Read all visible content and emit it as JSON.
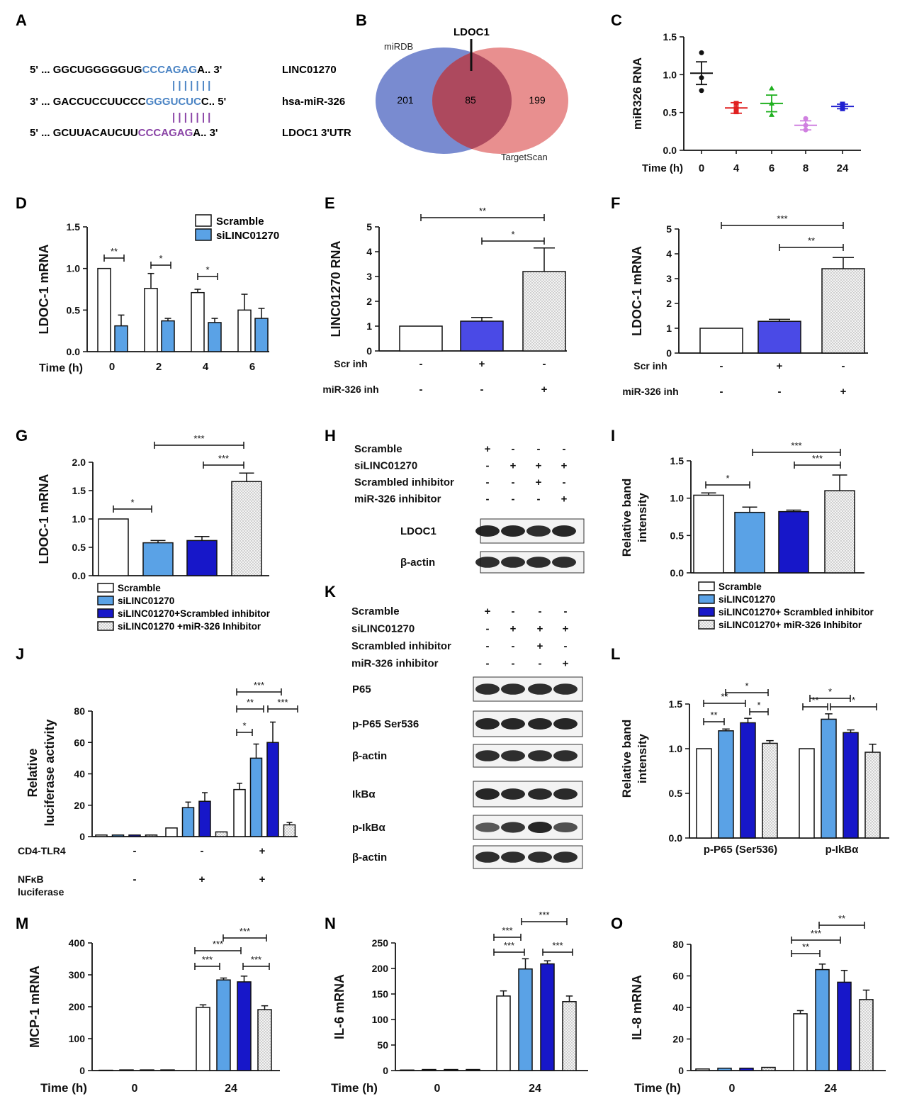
{
  "panel_letters": [
    "A",
    "B",
    "C",
    "D",
    "E",
    "F",
    "G",
    "H",
    "I",
    "J",
    "K",
    "L",
    "M",
    "N",
    "O"
  ],
  "panel_a": {
    "rows": [
      {
        "prefix": "5' ... ",
        "plain": "GGCUGGGGGUG",
        "colored": "CCCAGAG",
        "suffix": "A.. 3'",
        "label": "LINC01270",
        "color": "#4b84c4"
      },
      {
        "prefix": "3' ... ",
        "plain": "GACCUCCUUCCC",
        "colored": "GGGUCUC",
        "suffix": "C.. 5'",
        "label": "hsa-miR-326",
        "color": "#4b84c4"
      },
      {
        "prefix": "5' ... ",
        "plain": "GCUUACAUCUU",
        "colored": "CCCAGAG",
        "suffix": "A.. 3'",
        "label": "LDOC1 3'UTR",
        "color": "#8a44a6"
      }
    ],
    "pair_top": "| | | | | | |",
    "pair_bottom": "| | | | | | |"
  },
  "panel_b": {
    "left_label": "miRDB",
    "right_label": "TargetScan",
    "marker_label": "LDOC1",
    "left_only": "201",
    "overlap": "85",
    "right_only": "199",
    "colors": {
      "left": "#6a7ecb",
      "right": "#e47b7b",
      "overlap": "#a9445a"
    }
  },
  "legend_four": [
    "Scramble",
    "siLINC01270",
    "siLINC01270+Scrambled inhibitor",
    "siLINC01270 +miR-326 Inhibitor"
  ],
  "legend_four_i": [
    "Scramble",
    "siLINC01270",
    "siLINC01270+ Scrambled inhibitor",
    "siLINC01270+ miR-326 Inhibitor"
  ],
  "legend_two": [
    "Scramble",
    "siLINC01270"
  ],
  "colors": {
    "white": "#ffffff",
    "light_blue": "#5aa2e6",
    "dark_blue": "#1717c9",
    "medium_blue": "#4a4ae6",
    "dotted": "#ececec"
  },
  "blot_h": {
    "rows": [
      {
        "label": "Scramble",
        "marks": [
          "+",
          "-",
          "-",
          "-"
        ]
      },
      {
        "label": "siLINC01270",
        "marks": [
          "-",
          "+",
          "+",
          "+"
        ]
      },
      {
        "label": "Scrambled inhibitor",
        "marks": [
          "-",
          "-",
          "+",
          "-"
        ]
      },
      {
        "label": "miR-326 inhibitor",
        "marks": [
          "-",
          "-",
          "-",
          "+"
        ]
      }
    ],
    "bands": [
      "LDOC1",
      "β-actin"
    ]
  },
  "blot_k": {
    "rows": [
      {
        "label": "Scramble",
        "marks": [
          "+",
          "-",
          "-",
          "-"
        ]
      },
      {
        "label": "siLINC01270",
        "marks": [
          "-",
          "+",
          "+",
          "+"
        ]
      },
      {
        "label": "Scrambled inhibitor",
        "marks": [
          "-",
          "-",
          "+",
          "-"
        ]
      },
      {
        "label": "miR-326 inhibitor",
        "marks": [
          "-",
          "-",
          "-",
          "+"
        ]
      }
    ],
    "bands": [
      "P65",
      "p-P65 Ser536",
      "β-actin",
      "IkBα",
      "p-IkBα",
      "β-actin"
    ]
  },
  "chart_data": [
    {
      "id": "C",
      "type": "scatter",
      "ylabel": "miR326 RNA",
      "xlabel": "Time (h)",
      "categories": [
        "0",
        "4",
        "6",
        "8",
        "24"
      ],
      "ylim": [
        0,
        1.5
      ],
      "yticks": [
        "0.0",
        "0.5",
        "1.0",
        "1.5"
      ],
      "means": [
        1.02,
        0.56,
        0.62,
        0.33,
        0.58
      ],
      "errors": [
        0.15,
        0.07,
        0.11,
        0.06,
        0.03
      ],
      "points": [
        [
          1.29,
          0.96,
          0.79
        ],
        [
          0.62,
          0.55,
          0.51
        ],
        [
          0.82,
          0.62,
          0.47
        ],
        [
          0.42,
          0.33,
          0.27
        ],
        [
          0.61,
          0.58,
          0.55
        ]
      ],
      "point_colors": [
        "#111111",
        "#e02020",
        "#20b020",
        "#d080e0",
        "#2020d0"
      ]
    },
    {
      "id": "D",
      "type": "bar",
      "ylabel": "LDOC-1 mRNA",
      "xlabel": "Time (h)",
      "categories": [
        "0",
        "2",
        "4",
        "6"
      ],
      "ylim": [
        0,
        1.5
      ],
      "yticks": [
        "0.0",
        "0.5",
        "1.0",
        "1.5"
      ],
      "series": [
        {
          "name": "Scramble",
          "values": [
            1.0,
            0.76,
            0.71,
            0.5
          ],
          "errors": [
            0,
            0.18,
            0.04,
            0.19
          ]
        },
        {
          "name": "siLINC01270",
          "values": [
            0.31,
            0.37,
            0.35,
            0.4
          ],
          "errors": [
            0.13,
            0.03,
            0.05,
            0.12
          ]
        }
      ],
      "sig": [
        "**",
        "*",
        "*"
      ]
    },
    {
      "id": "E",
      "type": "bar",
      "ylabel": "LINC01270 RNA",
      "ylim": [
        0,
        5
      ],
      "yticks": [
        "0",
        "1",
        "2",
        "3",
        "4",
        "5"
      ],
      "values": [
        1.0,
        1.2,
        3.2
      ],
      "errors": [
        0,
        0.15,
        0.95
      ],
      "conditions": [
        {
          "label": "Scr inh",
          "marks": [
            "-",
            "+",
            "-"
          ]
        },
        {
          "label": "miR-326 inh",
          "marks": [
            "-",
            "-",
            "+"
          ]
        }
      ],
      "sig": [
        "**",
        "*"
      ]
    },
    {
      "id": "F",
      "type": "bar",
      "ylabel": "LDOC-1 mRNA",
      "ylim": [
        0,
        5
      ],
      "yticks": [
        "0",
        "1",
        "2",
        "3",
        "4",
        "5"
      ],
      "values": [
        1.0,
        1.28,
        3.4
      ],
      "errors": [
        0,
        0.08,
        0.45
      ],
      "conditions": [
        {
          "label": "Scr inh",
          "marks": [
            "-",
            "+",
            "-"
          ]
        },
        {
          "label": "miR-326 inh",
          "marks": [
            "-",
            "-",
            "+"
          ]
        }
      ],
      "sig": [
        "***",
        "**"
      ]
    },
    {
      "id": "G",
      "type": "bar",
      "ylabel": "LDOC-1 mRNA",
      "ylim": [
        0,
        2.0
      ],
      "yticks": [
        "0.0",
        "0.5",
        "1.0",
        "1.5",
        "2.0"
      ],
      "values": [
        1.0,
        0.58,
        0.62,
        1.66
      ],
      "errors": [
        0,
        0.04,
        0.07,
        0.15
      ],
      "sig": [
        "*",
        "***",
        "***"
      ]
    },
    {
      "id": "I",
      "type": "bar",
      "ylabel": "Relative band intensity",
      "ylim": [
        0,
        1.5
      ],
      "yticks": [
        "0.0",
        "0.5",
        "1.0",
        "1.5"
      ],
      "values": [
        1.04,
        0.81,
        0.82,
        1.1
      ],
      "errors": [
        0.03,
        0.07,
        0.02,
        0.21
      ],
      "sig": [
        "*",
        "***",
        "***"
      ]
    },
    {
      "id": "J",
      "type": "bar",
      "ylabel": "Relative luciferase activity",
      "ylim": [
        0,
        80
      ],
      "yticks": [
        "0",
        "20",
        "40",
        "60",
        "80"
      ],
      "groups": [
        [
          1,
          1,
          1,
          1
        ],
        [
          5.5,
          18.5,
          22.5,
          3
        ],
        [
          30,
          50,
          60,
          7.5
        ]
      ],
      "errors": [
        [
          0,
          0,
          0,
          0
        ],
        [
          0,
          3.5,
          5.5,
          0
        ],
        [
          4,
          9,
          13,
          1.5
        ]
      ],
      "conditions": [
        {
          "label": "CD4-TLR4",
          "marks": [
            "-",
            "-",
            "+"
          ]
        },
        {
          "label": "NFκB",
          "label2": "luciferase",
          "marks": [
            "-",
            "+",
            "+"
          ]
        }
      ],
      "sig": [
        "***",
        "**",
        "***",
        "*"
      ]
    },
    {
      "id": "L",
      "type": "bar",
      "ylabel": "Relative band intensity",
      "ylim": [
        0,
        1.5
      ],
      "yticks": [
        "0.0",
        "0.5",
        "1.0",
        "1.5"
      ],
      "categories": [
        "p-P65 (Ser536)",
        "p-IkBα"
      ],
      "groups": [
        [
          1.0,
          1.2,
          1.29,
          1.06
        ],
        [
          1.0,
          1.33,
          1.18,
          0.96
        ]
      ],
      "errors": [
        [
          0,
          0.02,
          0.05,
          0.03
        ],
        [
          0,
          0.06,
          0.03,
          0.09
        ]
      ],
      "sig": [
        "**",
        "*",
        "**",
        "*",
        "*",
        "**",
        "*"
      ]
    },
    {
      "id": "M",
      "type": "bar",
      "ylabel": "MCP-1 mRNA",
      "xlabel": "Time (h)",
      "categories": [
        "0",
        "24"
      ],
      "ylim": [
        0,
        400
      ],
      "yticks": [
        "0",
        "100",
        "200",
        "300",
        "400"
      ],
      "groups": [
        [
          1,
          2,
          2,
          2
        ],
        [
          198,
          284,
          278,
          191
        ]
      ],
      "errors": [
        [
          0,
          0,
          0,
          0
        ],
        [
          8,
          6,
          18,
          12
        ]
      ],
      "sig": [
        "***",
        "***",
        "***",
        "***"
      ]
    },
    {
      "id": "N",
      "type": "bar",
      "ylabel": "IL-6 mRNA",
      "xlabel": "Time (h)",
      "categories": [
        "0",
        "24"
      ],
      "ylim": [
        0,
        250
      ],
      "yticks": [
        "0",
        "50",
        "100",
        "150",
        "200",
        "250"
      ],
      "groups": [
        [
          1,
          2,
          2,
          2
        ],
        [
          146,
          199,
          209,
          135
        ]
      ],
      "errors": [
        [
          0,
          0,
          0,
          0
        ],
        [
          10,
          20,
          6,
          11
        ]
      ],
      "sig": [
        "***",
        "***",
        "***",
        "***"
      ]
    },
    {
      "id": "O",
      "type": "bar",
      "ylabel": "IL-8 mRNA",
      "xlabel": "Time (h)",
      "categories": [
        "0",
        "24"
      ],
      "ylim": [
        0,
        80
      ],
      "yticks": [
        "0",
        "20",
        "40",
        "60",
        "80"
      ],
      "groups": [
        [
          1,
          1.5,
          1.5,
          2
        ],
        [
          36,
          64,
          56,
          45
        ]
      ],
      "errors": [
        [
          0,
          0,
          0,
          0
        ],
        [
          2,
          3.5,
          7.5,
          6
        ]
      ],
      "sig": [
        "**",
        "***",
        "**"
      ]
    }
  ]
}
